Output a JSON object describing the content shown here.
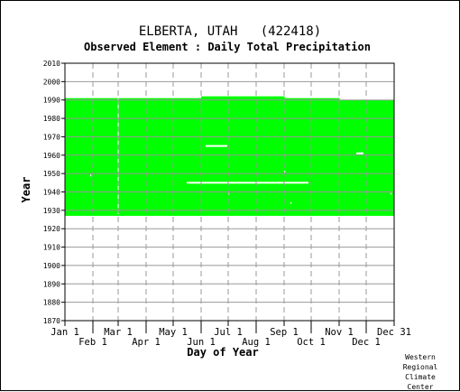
{
  "chart_data": {
    "type": "area",
    "title": "ELBERTA, UTAH   (422418)",
    "subtitle": "Observed Element : Daily Total Precipitation",
    "xlabel": "Day of Year",
    "ylabel": "Year",
    "xlim": [
      1,
      366
    ],
    "ylim": [
      1870,
      2010
    ],
    "yticks": [
      1870,
      1880,
      1890,
      1900,
      1910,
      1920,
      1930,
      1940,
      1950,
      1960,
      1970,
      1980,
      1990,
      2000,
      2010
    ],
    "xticks_top": [
      {
        "label": "Jan 1",
        "day": 1
      },
      {
        "label": "Mar 1",
        "day": 60
      },
      {
        "label": "May 1",
        "day": 121
      },
      {
        "label": "Jul 1",
        "day": 182
      },
      {
        "label": "Sep 1",
        "day": 244
      },
      {
        "label": "Nov 1",
        "day": 305
      },
      {
        "label": "Dec 31",
        "day": 366
      }
    ],
    "xticks_bottom": [
      {
        "label": "Feb 1",
        "day": 32
      },
      {
        "label": "Apr 1",
        "day": 91
      },
      {
        "label": "Jun 1",
        "day": 152
      },
      {
        "label": "Aug 1",
        "day": 213
      },
      {
        "label": "Oct 1",
        "day": 274
      },
      {
        "label": "Dec 1",
        "day": 335
      }
    ],
    "grid": true,
    "fill_color": "#00ff00",
    "coverage_start_year": 1927,
    "coverage_top": [
      {
        "from_day": 1,
        "to_day": 60,
        "end_year": 1991
      },
      {
        "from_day": 60,
        "to_day": 152,
        "end_year": 1991
      },
      {
        "from_day": 152,
        "to_day": 244,
        "end_year": 1992
      },
      {
        "from_day": 244,
        "to_day": 305,
        "end_year": 1991
      },
      {
        "from_day": 305,
        "to_day": 366,
        "end_year": 1990
      }
    ],
    "missing_segments": [
      {
        "year": 1945,
        "from_day": 136,
        "to_day": 271
      },
      {
        "year": 1965,
        "from_day": 157,
        "to_day": 181
      },
      {
        "year": 1961,
        "from_day": 324,
        "to_day": 332
      },
      {
        "year": 1949,
        "from_day": 29,
        "to_day": 30
      },
      {
        "year": 1939,
        "from_day": 182,
        "to_day": 183
      },
      {
        "year": 1951,
        "from_day": 244,
        "to_day": 245
      },
      {
        "year": 1934,
        "from_day": 251,
        "to_day": 252
      },
      {
        "year": 1939,
        "from_day": 362,
        "to_day": 363
      }
    ],
    "missing_columns": [
      {
        "day": 60,
        "from_year": 1928,
        "to_year": 1991
      }
    ]
  },
  "credit": [
    "Western",
    "Regional",
    "Climate",
    "Center"
  ]
}
